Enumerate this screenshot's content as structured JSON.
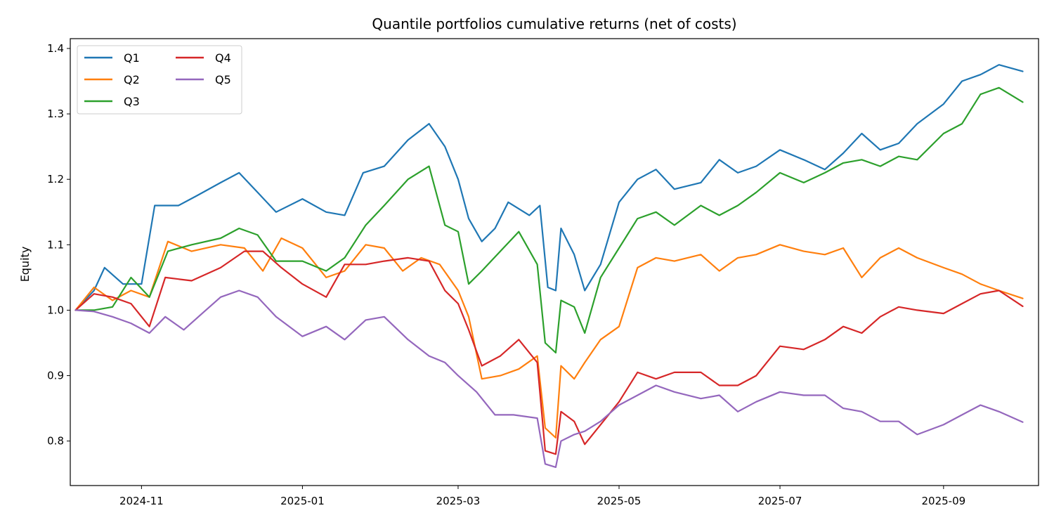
{
  "chart_data": {
    "type": "line",
    "title": "Quantile portfolios cumulative returns (net of costs)",
    "xlabel": "",
    "ylabel": "Equity",
    "x_range": [
      "2024-10-05",
      "2025-10-07"
    ],
    "ylim": [
      0.732,
      1.415
    ],
    "xticks": [
      "2024-11-01",
      "2025-01-01",
      "2025-03-01",
      "2025-05-01",
      "2025-07-01",
      "2025-09-01"
    ],
    "xtick_labels": [
      "2024-11",
      "2025-01",
      "2025-03",
      "2025-05",
      "2025-07",
      "2025-09"
    ],
    "yticks": [
      0.8,
      0.9,
      1.0,
      1.1,
      1.2,
      1.3,
      1.4
    ],
    "ytick_labels": [
      "0.8",
      "0.9",
      "1.0",
      "1.1",
      "1.2",
      "1.3",
      "1.4"
    ],
    "grid": false,
    "legend": {
      "placement": "top-left",
      "columns": 2
    },
    "series": [
      {
        "name": "Q1",
        "color": "#1f77b4",
        "x": [
          "2024-10-07",
          "2024-10-14",
          "2024-10-18",
          "2024-10-25",
          "2024-11-01",
          "2024-11-06",
          "2024-11-15",
          "2024-11-22",
          "2024-12-01",
          "2024-12-08",
          "2024-12-15",
          "2024-12-22",
          "2025-01-01",
          "2025-01-10",
          "2025-01-17",
          "2025-01-24",
          "2025-02-01",
          "2025-02-10",
          "2025-02-18",
          "2025-02-24",
          "2025-03-01",
          "2025-03-05",
          "2025-03-10",
          "2025-03-15",
          "2025-03-20",
          "2025-03-28",
          "2025-04-01",
          "2025-04-04",
          "2025-04-07",
          "2025-04-09",
          "2025-04-14",
          "2025-04-18",
          "2025-04-24",
          "2025-05-01",
          "2025-05-08",
          "2025-05-15",
          "2025-05-22",
          "2025-06-01",
          "2025-06-08",
          "2025-06-15",
          "2025-06-22",
          "2025-07-01",
          "2025-07-10",
          "2025-07-18",
          "2025-07-25",
          "2025-08-01",
          "2025-08-08",
          "2025-08-15",
          "2025-08-22",
          "2025-09-01",
          "2025-09-08",
          "2025-09-15",
          "2025-09-22",
          "2025-10-01"
        ],
        "values": [
          1.0,
          1.03,
          1.065,
          1.04,
          1.04,
          1.16,
          1.16,
          1.175,
          1.195,
          1.21,
          1.18,
          1.15,
          1.17,
          1.15,
          1.145,
          1.21,
          1.22,
          1.26,
          1.285,
          1.25,
          1.2,
          1.14,
          1.105,
          1.125,
          1.165,
          1.145,
          1.16,
          1.035,
          1.03,
          1.125,
          1.085,
          1.03,
          1.07,
          1.165,
          1.2,
          1.215,
          1.185,
          1.195,
          1.23,
          1.21,
          1.22,
          1.245,
          1.23,
          1.215,
          1.24,
          1.27,
          1.245,
          1.255,
          1.285,
          1.315,
          1.35,
          1.36,
          1.375,
          1.365
        ]
      },
      {
        "name": "Q2",
        "color": "#ff7f0e",
        "x": [
          "2024-10-07",
          "2024-10-14",
          "2024-10-21",
          "2024-10-28",
          "2024-11-04",
          "2024-11-11",
          "2024-11-20",
          "2024-12-01",
          "2024-12-10",
          "2024-12-17",
          "2024-12-24",
          "2025-01-01",
          "2025-01-10",
          "2025-01-17",
          "2025-01-25",
          "2025-02-01",
          "2025-02-08",
          "2025-02-15",
          "2025-02-22",
          "2025-03-01",
          "2025-03-05",
          "2025-03-10",
          "2025-03-17",
          "2025-03-24",
          "2025-03-31",
          "2025-04-03",
          "2025-04-07",
          "2025-04-09",
          "2025-04-14",
          "2025-04-18",
          "2025-04-24",
          "2025-05-01",
          "2025-05-08",
          "2025-05-15",
          "2025-05-22",
          "2025-06-01",
          "2025-06-08",
          "2025-06-15",
          "2025-06-22",
          "2025-07-01",
          "2025-07-10",
          "2025-07-18",
          "2025-07-25",
          "2025-08-01",
          "2025-08-08",
          "2025-08-15",
          "2025-08-22",
          "2025-09-01",
          "2025-09-08",
          "2025-09-15",
          "2025-09-22",
          "2025-10-01"
        ],
        "values": [
          1.0,
          1.035,
          1.015,
          1.03,
          1.02,
          1.105,
          1.09,
          1.1,
          1.095,
          1.06,
          1.11,
          1.095,
          1.05,
          1.06,
          1.1,
          1.095,
          1.06,
          1.08,
          1.07,
          1.03,
          0.99,
          0.895,
          0.9,
          0.91,
          0.93,
          0.82,
          0.805,
          0.915,
          0.895,
          0.92,
          0.955,
          0.975,
          1.065,
          1.08,
          1.075,
          1.085,
          1.06,
          1.08,
          1.085,
          1.1,
          1.09,
          1.085,
          1.095,
          1.05,
          1.08,
          1.095,
          1.08,
          1.065,
          1.055,
          1.04,
          1.03,
          1.018
        ]
      },
      {
        "name": "Q3",
        "color": "#2ca02c",
        "x": [
          "2024-10-07",
          "2024-10-14",
          "2024-10-21",
          "2024-10-28",
          "2024-11-04",
          "2024-11-11",
          "2024-11-20",
          "2024-12-01",
          "2024-12-08",
          "2024-12-15",
          "2024-12-22",
          "2025-01-01",
          "2025-01-10",
          "2025-01-17",
          "2025-01-25",
          "2025-02-01",
          "2025-02-10",
          "2025-02-18",
          "2025-02-24",
          "2025-03-01",
          "2025-03-05",
          "2025-03-10",
          "2025-03-17",
          "2025-03-24",
          "2025-03-31",
          "2025-04-03",
          "2025-04-07",
          "2025-04-09",
          "2025-04-14",
          "2025-04-18",
          "2025-04-24",
          "2025-05-01",
          "2025-05-08",
          "2025-05-15",
          "2025-05-22",
          "2025-06-01",
          "2025-06-08",
          "2025-06-15",
          "2025-06-22",
          "2025-07-01",
          "2025-07-10",
          "2025-07-18",
          "2025-07-25",
          "2025-08-01",
          "2025-08-08",
          "2025-08-15",
          "2025-08-22",
          "2025-09-01",
          "2025-09-08",
          "2025-09-15",
          "2025-09-22",
          "2025-10-01"
        ],
        "values": [
          1.0,
          1.0,
          1.005,
          1.05,
          1.02,
          1.09,
          1.1,
          1.11,
          1.125,
          1.115,
          1.075,
          1.075,
          1.06,
          1.08,
          1.13,
          1.16,
          1.2,
          1.22,
          1.13,
          1.12,
          1.04,
          1.06,
          1.09,
          1.12,
          1.07,
          0.95,
          0.935,
          1.015,
          1.005,
          0.965,
          1.05,
          1.095,
          1.14,
          1.15,
          1.13,
          1.16,
          1.145,
          1.16,
          1.18,
          1.21,
          1.195,
          1.21,
          1.225,
          1.23,
          1.22,
          1.235,
          1.23,
          1.27,
          1.285,
          1.33,
          1.34,
          1.318
        ]
      },
      {
        "name": "Q4",
        "color": "#d62728",
        "x": [
          "2024-10-07",
          "2024-10-14",
          "2024-10-21",
          "2024-10-28",
          "2024-11-04",
          "2024-11-10",
          "2024-11-20",
          "2024-12-01",
          "2024-12-10",
          "2024-12-17",
          "2024-12-24",
          "2025-01-01",
          "2025-01-10",
          "2025-01-17",
          "2025-01-25",
          "2025-02-01",
          "2025-02-10",
          "2025-02-18",
          "2025-02-24",
          "2025-03-01",
          "2025-03-05",
          "2025-03-10",
          "2025-03-17",
          "2025-03-24",
          "2025-03-31",
          "2025-04-03",
          "2025-04-07",
          "2025-04-09",
          "2025-04-14",
          "2025-04-18",
          "2025-04-24",
          "2025-05-01",
          "2025-05-08",
          "2025-05-15",
          "2025-05-22",
          "2025-06-01",
          "2025-06-08",
          "2025-06-15",
          "2025-06-22",
          "2025-07-01",
          "2025-07-10",
          "2025-07-18",
          "2025-07-25",
          "2025-08-01",
          "2025-08-08",
          "2025-08-15",
          "2025-08-22",
          "2025-09-01",
          "2025-09-08",
          "2025-09-15",
          "2025-09-22",
          "2025-10-01"
        ],
        "values": [
          1.0,
          1.025,
          1.02,
          1.01,
          0.975,
          1.05,
          1.045,
          1.065,
          1.09,
          1.09,
          1.065,
          1.04,
          1.02,
          1.07,
          1.07,
          1.075,
          1.08,
          1.075,
          1.03,
          1.01,
          0.97,
          0.915,
          0.93,
          0.955,
          0.92,
          0.785,
          0.78,
          0.845,
          0.83,
          0.795,
          0.825,
          0.86,
          0.905,
          0.895,
          0.905,
          0.905,
          0.885,
          0.885,
          0.9,
          0.945,
          0.94,
          0.955,
          0.975,
          0.965,
          0.99,
          1.005,
          1.0,
          0.995,
          1.01,
          1.025,
          1.03,
          1.006
        ]
      },
      {
        "name": "Q5",
        "color": "#9467bd",
        "x": [
          "2024-10-07",
          "2024-10-14",
          "2024-10-21",
          "2024-10-28",
          "2024-11-04",
          "2024-11-10",
          "2024-11-17",
          "2024-11-24",
          "2024-12-01",
          "2024-12-08",
          "2024-12-15",
          "2024-12-22",
          "2025-01-01",
          "2025-01-10",
          "2025-01-17",
          "2025-01-25",
          "2025-02-01",
          "2025-02-10",
          "2025-02-18",
          "2025-02-24",
          "2025-03-01",
          "2025-03-08",
          "2025-03-15",
          "2025-03-22",
          "2025-03-31",
          "2025-04-03",
          "2025-04-07",
          "2025-04-09",
          "2025-04-14",
          "2025-04-18",
          "2025-04-24",
          "2025-05-01",
          "2025-05-08",
          "2025-05-15",
          "2025-05-22",
          "2025-06-01",
          "2025-06-08",
          "2025-06-15",
          "2025-06-22",
          "2025-07-01",
          "2025-07-10",
          "2025-07-18",
          "2025-07-25",
          "2025-08-01",
          "2025-08-08",
          "2025-08-15",
          "2025-08-22",
          "2025-09-01",
          "2025-09-08",
          "2025-09-15",
          "2025-09-22",
          "2025-10-01"
        ],
        "values": [
          1.0,
          0.998,
          0.99,
          0.98,
          0.965,
          0.99,
          0.97,
          0.995,
          1.02,
          1.03,
          1.02,
          0.99,
          0.96,
          0.975,
          0.955,
          0.985,
          0.99,
          0.955,
          0.93,
          0.92,
          0.9,
          0.875,
          0.84,
          0.84,
          0.835,
          0.765,
          0.76,
          0.8,
          0.81,
          0.815,
          0.83,
          0.855,
          0.87,
          0.885,
          0.875,
          0.865,
          0.87,
          0.845,
          0.86,
          0.875,
          0.87,
          0.87,
          0.85,
          0.845,
          0.83,
          0.83,
          0.81,
          0.825,
          0.84,
          0.855,
          0.845,
          0.829
        ]
      }
    ]
  }
}
